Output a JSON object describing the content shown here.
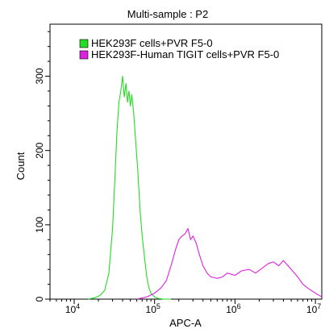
{
  "chart_data": {
    "type": "line",
    "title": "Multi-sample : P2",
    "xlabel": "APC-A",
    "ylabel": "Count",
    "xscale": "log",
    "xlim": [
      5000,
      12000000
    ],
    "ylim": [
      0,
      370
    ],
    "xticks": [
      {
        "value": 10000,
        "base": "10",
        "exp": "4"
      },
      {
        "value": 100000,
        "base": "10",
        "exp": "5"
      },
      {
        "value": 1000000,
        "base": "10",
        "exp": "6"
      },
      {
        "value": 10000000,
        "base": "10",
        "exp": "7"
      }
    ],
    "yticks": [
      0,
      100,
      200,
      300
    ],
    "grid": false,
    "legend_position": "top-left",
    "series": [
      {
        "name": "HEK293F cells+PVR F5-0",
        "color": "#22dd22",
        "x": [
          15000,
          18000,
          21000,
          24000,
          27000,
          30000,
          32000,
          34000,
          36000,
          38000,
          40000,
          42000,
          44000,
          46000,
          48000,
          50000,
          52000,
          55000,
          58000,
          62000,
          66000,
          70000,
          75000,
          80000,
          85000,
          90000,
          100000,
          110000,
          130000,
          160000
        ],
        "y": [
          0,
          2,
          5,
          12,
          35,
          95,
          160,
          225,
          265,
          280,
          300,
          272,
          290,
          265,
          280,
          260,
          275,
          250,
          215,
          170,
          120,
          85,
          55,
          30,
          15,
          8,
          3,
          1,
          0,
          0
        ]
      },
      {
        "name": "HEK293F-Human TIGIT cells+PVR F5-0",
        "color": "#dd22dd",
        "x": [
          60000,
          80000,
          100000,
          120000,
          140000,
          160000,
          180000,
          200000,
          220000,
          240000,
          260000,
          280000,
          300000,
          330000,
          360000,
          400000,
          450000,
          500000,
          600000,
          700000,
          800000,
          1000000,
          1200000,
          1500000,
          1800000,
          2200000,
          2600000,
          3000000,
          3500000,
          4000000,
          5000000,
          6000000,
          7000000,
          8000000,
          10000000,
          12000000
        ],
        "y": [
          0,
          3,
          8,
          15,
          25,
          45,
          65,
          80,
          85,
          88,
          95,
          80,
          85,
          75,
          60,
          45,
          35,
          30,
          28,
          30,
          35,
          32,
          38,
          40,
          35,
          42,
          48,
          50,
          45,
          52,
          40,
          30,
          20,
          15,
          8,
          3
        ]
      }
    ]
  }
}
